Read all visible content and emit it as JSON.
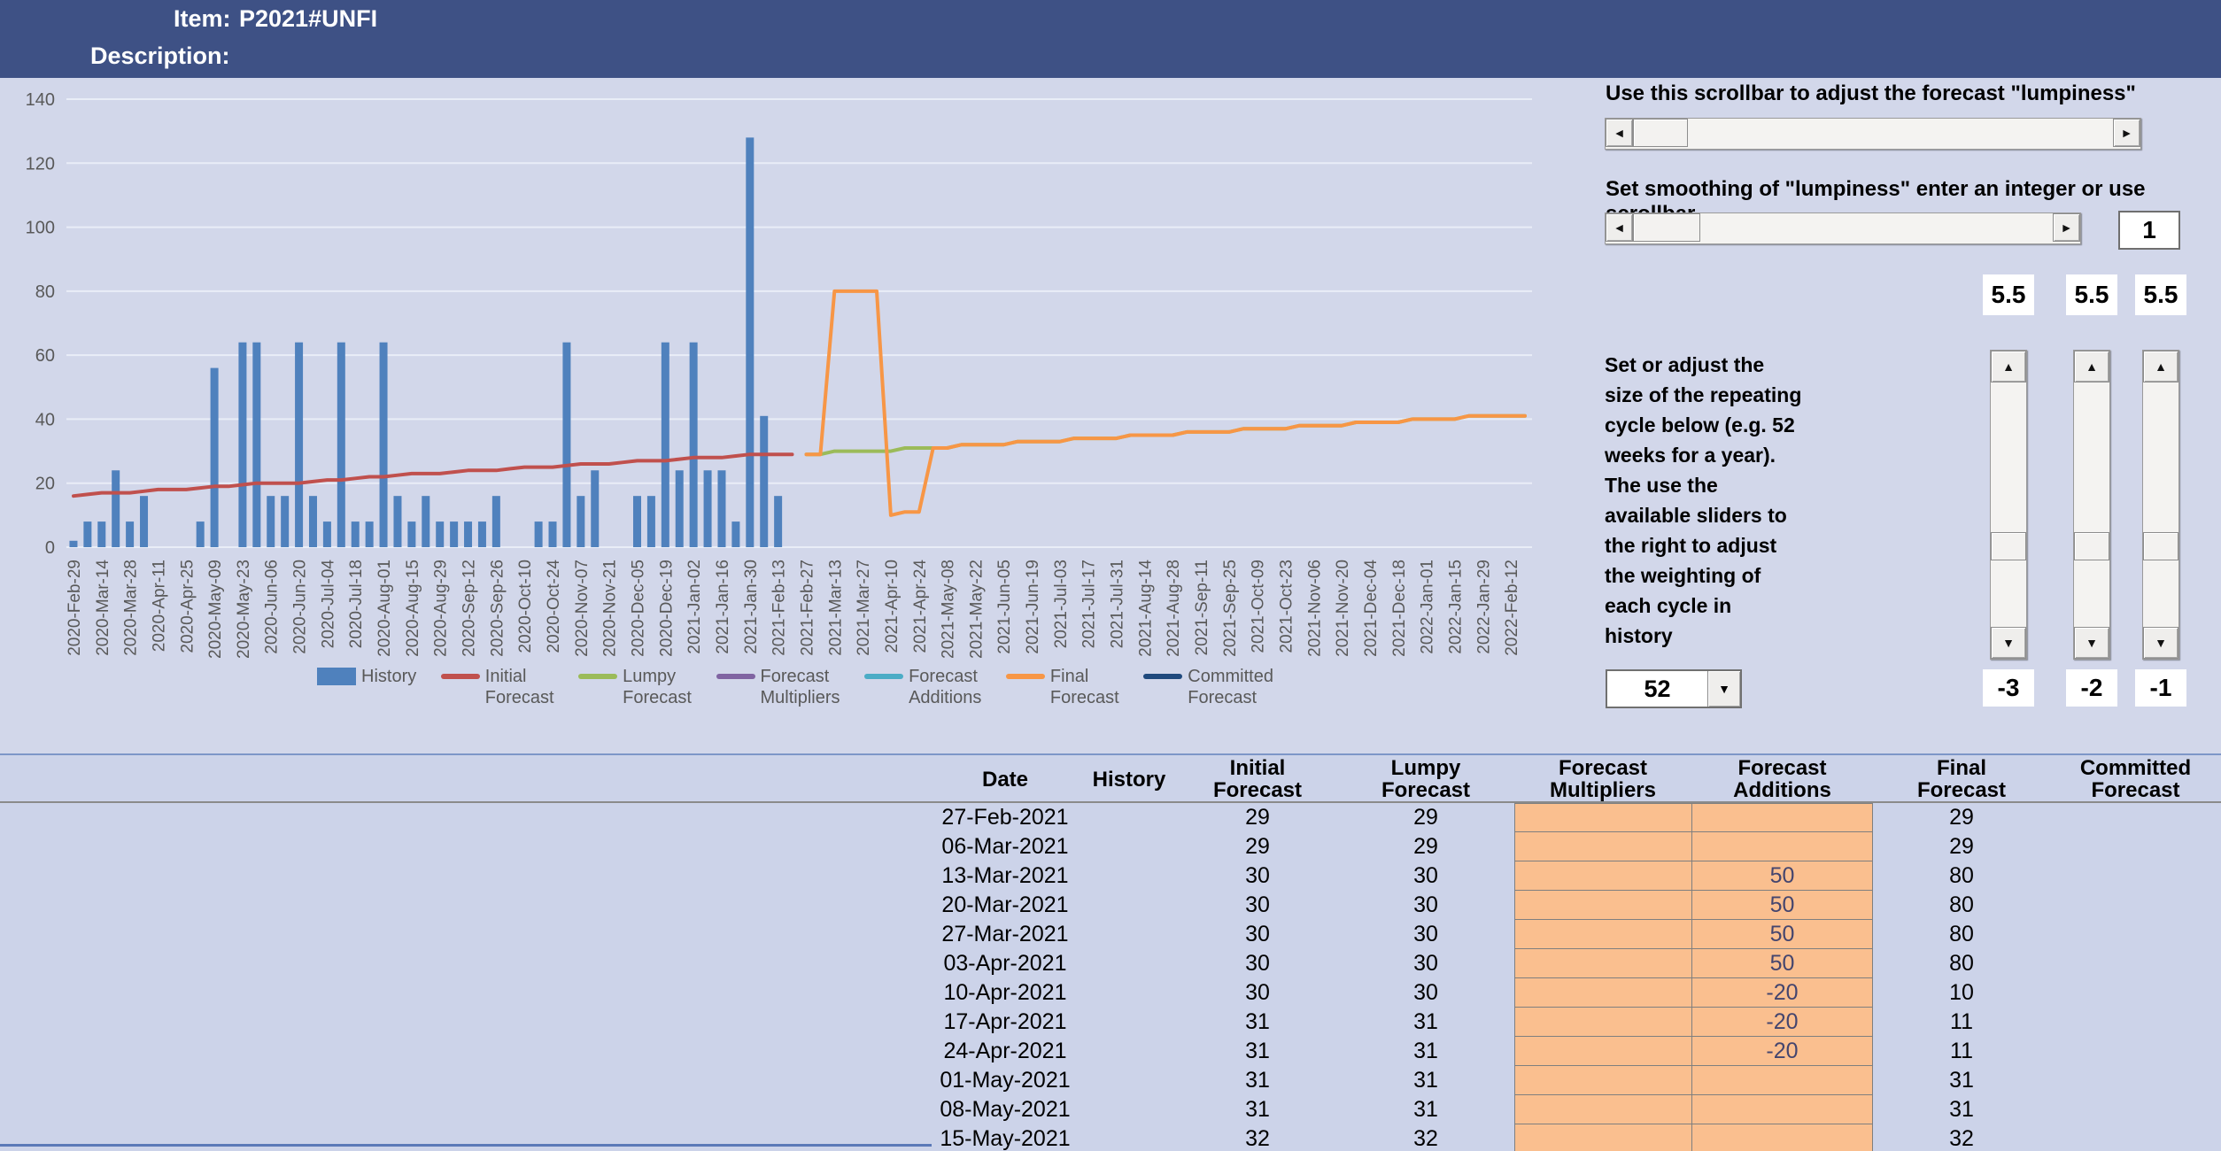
{
  "header": {
    "item_label": "Item:",
    "item_value": "P2021#UNFI",
    "description_label": "Description:"
  },
  "controls": {
    "lumpiness_scrollbar_label": "Use this scrollbar to adjust the forecast \"lumpiness\"",
    "smoothing_label": "Set smoothing of \"lumpiness\" enter an integer or use scrollbar",
    "smoothing_value": "1",
    "cycle_help_text": "Set or adjust the\nsize of the repeating\ncycle below (e.g. 52\nweeks for a year).\nThe use the\navailable sliders to\nthe right to adjust\nthe weighting of\neach cycle in\nhistory",
    "cycle_length_value": "52",
    "weight_sliders": [
      {
        "value": "5.5",
        "cycle_label": "-3"
      },
      {
        "value": "5.5",
        "cycle_label": "-2"
      },
      {
        "value": "5.5",
        "cycle_label": "-1"
      }
    ]
  },
  "chart_data": {
    "type": "combo",
    "n_points": 104,
    "points_are": "weekly",
    "ylim": [
      0,
      140
    ],
    "y_tick_step": 20,
    "x_ticks_every_n_points": 2,
    "x_tick_labels": [
      "2020-Feb-29",
      "2020-Mar-14",
      "2020-Mar-28",
      "2020-Apr-11",
      "2020-Apr-25",
      "2020-May-09",
      "2020-May-23",
      "2020-Jun-06",
      "2020-Jun-20",
      "2020-Jul-04",
      "2020-Jul-18",
      "2020-Aug-01",
      "2020-Aug-15",
      "2020-Aug-29",
      "2020-Sep-12",
      "2020-Sep-26",
      "2020-Oct-10",
      "2020-Oct-24",
      "2020-Nov-07",
      "2020-Nov-21",
      "2020-Dec-05",
      "2020-Dec-19",
      "2021-Jan-02",
      "2021-Jan-16",
      "2021-Jan-30",
      "2021-Feb-13",
      "2021-Feb-27",
      "2021-Mar-13",
      "2021-Mar-27",
      "2021-Apr-10",
      "2021-Apr-24",
      "2021-May-08",
      "2021-May-22",
      "2021-Jun-05",
      "2021-Jun-19",
      "2021-Jul-03",
      "2021-Jul-17",
      "2021-Jul-31",
      "2021-Aug-14",
      "2021-Aug-28",
      "2021-Sep-11",
      "2021-Sep-25",
      "2021-Oct-09",
      "2021-Oct-23",
      "2021-Nov-06",
      "2021-Nov-20",
      "2021-Dec-04",
      "2021-Dec-18",
      "2022-Jan-01",
      "2022-Jan-15",
      "2022-Jan-29",
      "2022-Feb-12"
    ],
    "legend_position": "bottom",
    "grid": true,
    "series": [
      {
        "name": "History",
        "type": "bar",
        "color": "#4f81bd",
        "start": 0,
        "values": [
          2,
          8,
          8,
          24,
          8,
          16,
          0,
          0,
          0,
          8,
          56,
          0,
          64,
          64,
          16,
          16,
          64,
          16,
          8,
          64,
          8,
          8,
          64,
          16,
          8,
          16,
          8,
          8,
          8,
          8,
          16,
          0,
          0,
          8,
          8,
          64,
          16,
          24,
          0,
          0,
          16,
          16,
          64,
          24,
          64,
          24,
          24,
          8,
          128,
          41,
          16,
          0
        ]
      },
      {
        "name": "Initial Forecast",
        "type": "line",
        "color": "#c0504d",
        "start": 0,
        "values": [
          16,
          16.5,
          17,
          17,
          17,
          17.5,
          18,
          18,
          18,
          18.5,
          19,
          19,
          19.5,
          20,
          20,
          20,
          20,
          20.5,
          21,
          21,
          21.5,
          22,
          22,
          22.5,
          23,
          23,
          23,
          23.5,
          24,
          24,
          24,
          24.5,
          25,
          25,
          25,
          25.5,
          26,
          26,
          26,
          26.5,
          27,
          27,
          27,
          27.5,
          28,
          28,
          28,
          28.5,
          29,
          29,
          29,
          29
        ]
      },
      {
        "name": "Lumpy Forecast",
        "type": "line",
        "color": "#9bbb59",
        "start": 52,
        "values": [
          29,
          29,
          30,
          30,
          30,
          30,
          30,
          31,
          31,
          31,
          31,
          32,
          32,
          32,
          32,
          33,
          33,
          33,
          33,
          34,
          34,
          34,
          34,
          35,
          35,
          35,
          35,
          36,
          36,
          36,
          36,
          37,
          37,
          37,
          37,
          38,
          38,
          38,
          38,
          39,
          39,
          39,
          39,
          40,
          40,
          40,
          40,
          41,
          41,
          41,
          41,
          41
        ]
      },
      {
        "name": "Forecast Multipliers",
        "type": "line",
        "color": "#8064a2",
        "start": 52,
        "values": []
      },
      {
        "name": "Forecast Additions",
        "type": "line",
        "color": "#4bacc6",
        "start": 52,
        "values": []
      },
      {
        "name": "Final Forecast",
        "type": "line",
        "color": "#f79646",
        "start": 52,
        "values": [
          29,
          29,
          80,
          80,
          80,
          80,
          10,
          11,
          11,
          31,
          31,
          32,
          32,
          32,
          32,
          33,
          33,
          33,
          33,
          34,
          34,
          34,
          34,
          35,
          35,
          35,
          35,
          36,
          36,
          36,
          36,
          37,
          37,
          37,
          37,
          38,
          38,
          38,
          38,
          39,
          39,
          39,
          39,
          40,
          40,
          40,
          40,
          41,
          41,
          41,
          41,
          41
        ]
      },
      {
        "name": "Committed Forecast",
        "type": "line",
        "color": "#1f497d",
        "start": 52,
        "values": []
      }
    ]
  },
  "table": {
    "columns": [
      {
        "l1": "Date",
        "l2": ""
      },
      {
        "l1": "History",
        "l2": ""
      },
      {
        "l1": "Initial",
        "l2": "Forecast"
      },
      {
        "l1": "Lumpy",
        "l2": "Forecast"
      },
      {
        "l1": "Forecast",
        "l2": "Multipliers"
      },
      {
        "l1": "Forecast",
        "l2": "Additions"
      },
      {
        "l1": "Final",
        "l2": "Forecast"
      },
      {
        "l1": "Committed",
        "l2": "Forecast"
      }
    ],
    "rows": [
      [
        "27-Feb-2021",
        "",
        "29",
        "29",
        "",
        "",
        "29",
        ""
      ],
      [
        "06-Mar-2021",
        "",
        "29",
        "29",
        "",
        "",
        "29",
        ""
      ],
      [
        "13-Mar-2021",
        "",
        "30",
        "30",
        "",
        "50",
        "80",
        ""
      ],
      [
        "20-Mar-2021",
        "",
        "30",
        "30",
        "",
        "50",
        "80",
        ""
      ],
      [
        "27-Mar-2021",
        "",
        "30",
        "30",
        "",
        "50",
        "80",
        ""
      ],
      [
        "03-Apr-2021",
        "",
        "30",
        "30",
        "",
        "50",
        "80",
        ""
      ],
      [
        "10-Apr-2021",
        "",
        "30",
        "30",
        "",
        "-20",
        "10",
        ""
      ],
      [
        "17-Apr-2021",
        "",
        "31",
        "31",
        "",
        "-20",
        "11",
        ""
      ],
      [
        "24-Apr-2021",
        "",
        "31",
        "31",
        "",
        "-20",
        "11",
        ""
      ],
      [
        "01-May-2021",
        "",
        "31",
        "31",
        "",
        "",
        "31",
        ""
      ],
      [
        "08-May-2021",
        "",
        "31",
        "31",
        "",
        "",
        "31",
        ""
      ],
      [
        "15-May-2021",
        "",
        "32",
        "32",
        "",
        "",
        "32",
        ""
      ]
    ]
  },
  "colors": {
    "header_bg": "#3e5185",
    "page_bg": "#d2d7ea",
    "bar": "#4f81bd",
    "orange_cell": "#fabf8f",
    "axis_text": "#595959"
  }
}
